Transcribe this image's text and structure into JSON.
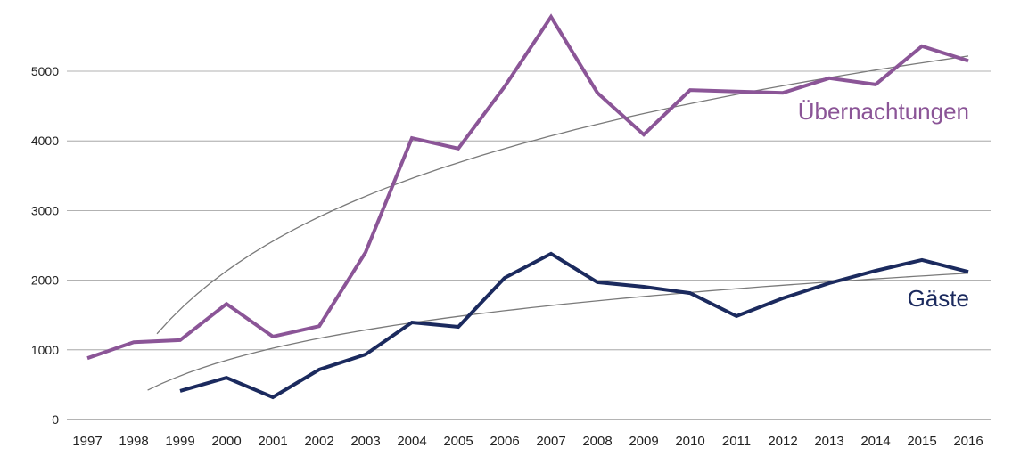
{
  "chart_data": {
    "type": "line",
    "title": "",
    "xlabel": "",
    "ylabel": "",
    "ylim": [
      0,
      5800
    ],
    "yticks": [
      0,
      1000,
      2000,
      3000,
      4000,
      5000
    ],
    "grid": true,
    "x": [
      1997,
      1998,
      1999,
      2000,
      2001,
      2002,
      2003,
      2004,
      2005,
      2006,
      2007,
      2008,
      2009,
      2010,
      2011,
      2012,
      2013,
      2014,
      2015,
      2016
    ],
    "series": [
      {
        "name": "Übernachtungen",
        "color": "#8b5597",
        "values": [
          880,
          1110,
          1140,
          1660,
          1190,
          1340,
          2400,
          4040,
          3890,
          4780,
          5780,
          4690,
          4090,
          4730,
          4710,
          4690,
          4900,
          4810,
          5360,
          5150
        ],
        "trendline": {
          "type": "logarithmic",
          "from": 1998.5,
          "to": 2016,
          "a": -527,
          "b": 1918
        }
      },
      {
        "name": "Gäste",
        "color": "#1b2a5e",
        "values": [
          null,
          null,
          410,
          600,
          320,
          716,
          933,
          1394,
          1330,
          2033,
          2380,
          1970,
          1905,
          1815,
          1483,
          1740,
          1957,
          2135,
          2290,
          2120
        ],
        "trendline": {
          "type": "logarithmic",
          "from": 1998.3,
          "to": 2016,
          "a": -227,
          "b": 777
        }
      }
    ],
    "trendline_color": "#7a7a7a"
  }
}
